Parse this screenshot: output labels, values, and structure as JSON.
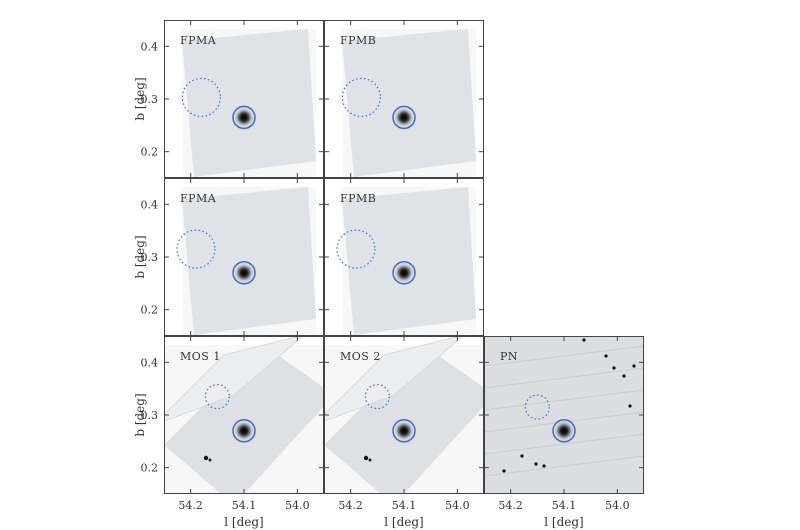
{
  "figure": {
    "panels": [
      {
        "label": "FPMA",
        "row": 0,
        "col": 0,
        "instrument": "nustar",
        "source": [
          54.1,
          0.265
        ],
        "background": [
          54.18,
          0.303
        ]
      },
      {
        "label": "FPMB",
        "row": 0,
        "col": 1,
        "instrument": "nustar",
        "source": [
          54.1,
          0.265
        ],
        "background": [
          54.18,
          0.303
        ]
      },
      {
        "label": "FPMA",
        "row": 1,
        "col": 0,
        "instrument": "nustar",
        "source": [
          54.1,
          0.27
        ],
        "background": [
          54.19,
          0.315
        ]
      },
      {
        "label": "FPMB",
        "row": 1,
        "col": 1,
        "instrument": "nustar",
        "source": [
          54.1,
          0.27
        ],
        "background": [
          54.19,
          0.315
        ]
      },
      {
        "label": "MOS 1",
        "row": 2,
        "col": 0,
        "instrument": "xmm",
        "source": [
          54.1,
          0.27
        ],
        "background": [
          54.15,
          0.335
        ]
      },
      {
        "label": "MOS 2",
        "row": 2,
        "col": 1,
        "instrument": "xmm",
        "source": [
          54.1,
          0.27
        ],
        "background": [
          54.15,
          0.335
        ]
      },
      {
        "label": "PN",
        "row": 2,
        "col": 2,
        "instrument": "xmm",
        "source": [
          54.1,
          0.27
        ],
        "background": [
          54.15,
          0.315
        ]
      }
    ]
  },
  "chart_data": {
    "type": "image",
    "xlabel": "l [deg]",
    "ylabel": "b [deg]",
    "xlim": [
      54.25,
      53.95
    ],
    "ylim": [
      0.15,
      0.45
    ],
    "xticks": [
      54.2,
      54.1,
      54.0
    ],
    "yticks": [
      0.2,
      0.3,
      0.4
    ],
    "xtick_labels": [
      "54.2",
      "54.1",
      "54.0"
    ],
    "ytick_labels": [
      "0.2",
      "0.3",
      "0.4"
    ],
    "annotations": {
      "source_region": "solid blue circle",
      "background_region": "dotted blue circle"
    },
    "colors": {
      "region": "#2f6fde",
      "image_bg": "#e6e8ea",
      "panel_border": "#444444"
    }
  }
}
